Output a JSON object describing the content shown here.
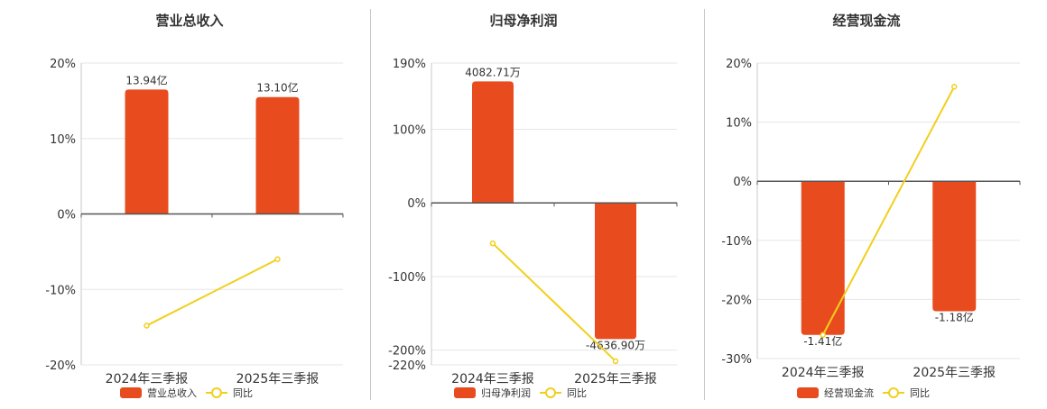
{
  "chart_data": [
    {
      "type": "bar",
      "title": "营业总收入",
      "categories": [
        "2024年三季报",
        "2025年三季报"
      ],
      "series": [
        {
          "name": "营业总收入",
          "type": "bar",
          "values": [
            16.5,
            15.5
          ],
          "labels": [
            "13.94亿",
            "13.10亿"
          ]
        },
        {
          "name": "同比",
          "type": "line",
          "values": [
            -14.8,
            -6.0
          ]
        }
      ],
      "yticks": [
        "20%",
        "10%",
        "0%",
        "-10%",
        "-20%"
      ],
      "ylim": [
        -20,
        20
      ],
      "grid": true,
      "legend": "bottom",
      "colors": {
        "bar": "#e84c1e",
        "line": "#f2cf1c"
      }
    },
    {
      "type": "bar",
      "title": "归母净利润",
      "categories": [
        "2024年三季报",
        "2025年三季报"
      ],
      "series": [
        {
          "name": "归母净利润",
          "type": "bar",
          "values": [
            165,
            -185
          ],
          "labels": [
            "4082.71万",
            "-4636.90万"
          ]
        },
        {
          "name": "同比",
          "type": "line",
          "values": [
            -55,
            -215
          ]
        }
      ],
      "yticks": [
        "190%",
        "100%",
        "0%",
        "-100%",
        "-200%",
        "-220%"
      ],
      "ylim": [
        -220,
        190
      ],
      "grid": true,
      "legend": "bottom",
      "colors": {
        "bar": "#e84c1e",
        "line": "#f2cf1c"
      }
    },
    {
      "type": "bar",
      "title": "经营现金流",
      "categories": [
        "2024年三季报",
        "2025年三季报"
      ],
      "series": [
        {
          "name": "经营现金流",
          "type": "bar",
          "values": [
            -26,
            -22
          ],
          "labels": [
            "-1.41亿",
            "-1.18亿"
          ]
        },
        {
          "name": "同比",
          "type": "line",
          "values": [
            -26,
            16
          ]
        }
      ],
      "yticks": [
        "20%",
        "10%",
        "0%",
        "-10%",
        "-20%",
        "-30%"
      ],
      "ylim": [
        -30,
        20
      ],
      "grid": true,
      "legend": "bottom",
      "colors": {
        "bar": "#e84c1e",
        "line": "#f2cf1c"
      }
    }
  ]
}
